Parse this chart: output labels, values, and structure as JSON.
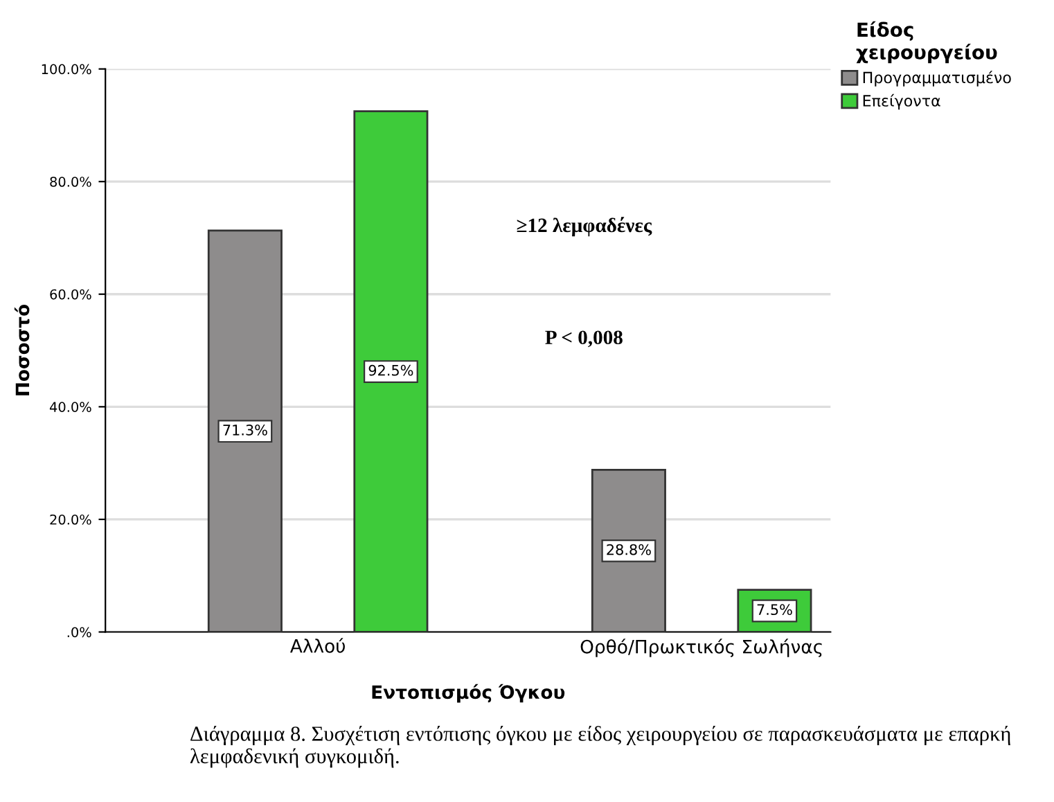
{
  "chart_data": {
    "type": "bar",
    "xlabel": "Εντοπισμός Όγκου",
    "ylabel": "Ποσοστό",
    "legend_title": "Είδος\nχειρουργείου",
    "categories": [
      "Αλλού",
      "Ορθό/Πρωκτικός Σωλήνας"
    ],
    "series": [
      {
        "name": "Προγραμματισμένο",
        "color": "#8e8c8c",
        "values": [
          71.3,
          28.8
        ],
        "value_labels": [
          "71.3%",
          "28.8%"
        ]
      },
      {
        "name": "Επείγοντα",
        "color": "#3ecb3a",
        "values": [
          92.5,
          7.5
        ],
        "value_labels": [
          "92.5%",
          "7.5%"
        ]
      }
    ],
    "ylim": [
      0,
      100
    ],
    "yticks": [
      {
        "value": 0,
        "label": ".0%"
      },
      {
        "value": 20,
        "label": "20.0%"
      },
      {
        "value": 40,
        "label": "40.0%"
      },
      {
        "value": 60,
        "label": "60.0%"
      },
      {
        "value": 80,
        "label": "80.0%"
      },
      {
        "value": 100,
        "label": "100.0%"
      }
    ],
    "grid": "y",
    "legend": "top right",
    "annotations": [
      "≥12 λεμφαδένες",
      "P < 0,008",
      "Διάγραμμα 8. Συσχέτιση εντόπισης όγκου με είδος χειρουργείου σε παρασκευάσματα με επαρκή λεμφαδενική συγκομιδή."
    ]
  }
}
